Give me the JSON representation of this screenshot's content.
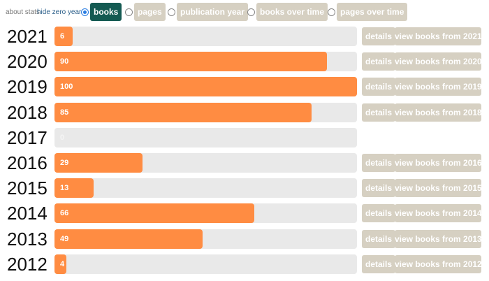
{
  "toolbar": {
    "links": [
      "about stats",
      "hide zero years"
    ],
    "options": [
      {
        "label": "books",
        "selected": true
      },
      {
        "label": "pages",
        "selected": false
      },
      {
        "label": "publication year",
        "selected": false
      },
      {
        "label": "books over time",
        "selected": false
      },
      {
        "label": "pages over time",
        "selected": false
      }
    ]
  },
  "rows": [
    {
      "year": "2021",
      "value": 6,
      "details": "details",
      "view": "view books from 2021"
    },
    {
      "year": "2020",
      "value": 90,
      "details": "details",
      "view": "view books from 2020"
    },
    {
      "year": "2019",
      "value": 100,
      "details": "details",
      "view": "view books from 2019"
    },
    {
      "year": "2018",
      "value": 85,
      "details": "details",
      "view": "view books from 2018"
    },
    {
      "year": "2017",
      "value": 0
    },
    {
      "year": "2016",
      "value": 29,
      "details": "details",
      "view": "view books from 2016"
    },
    {
      "year": "2015",
      "value": 13,
      "details": "details",
      "view": "view books from 2015"
    },
    {
      "year": "2014",
      "value": 66,
      "details": "details",
      "view": "view books from 2014"
    },
    {
      "year": "2013",
      "value": 49,
      "details": "details",
      "view": "view books from 2013"
    },
    {
      "year": "2012",
      "value": 4,
      "details": "details",
      "view": "view books from 2012"
    }
  ]
}
